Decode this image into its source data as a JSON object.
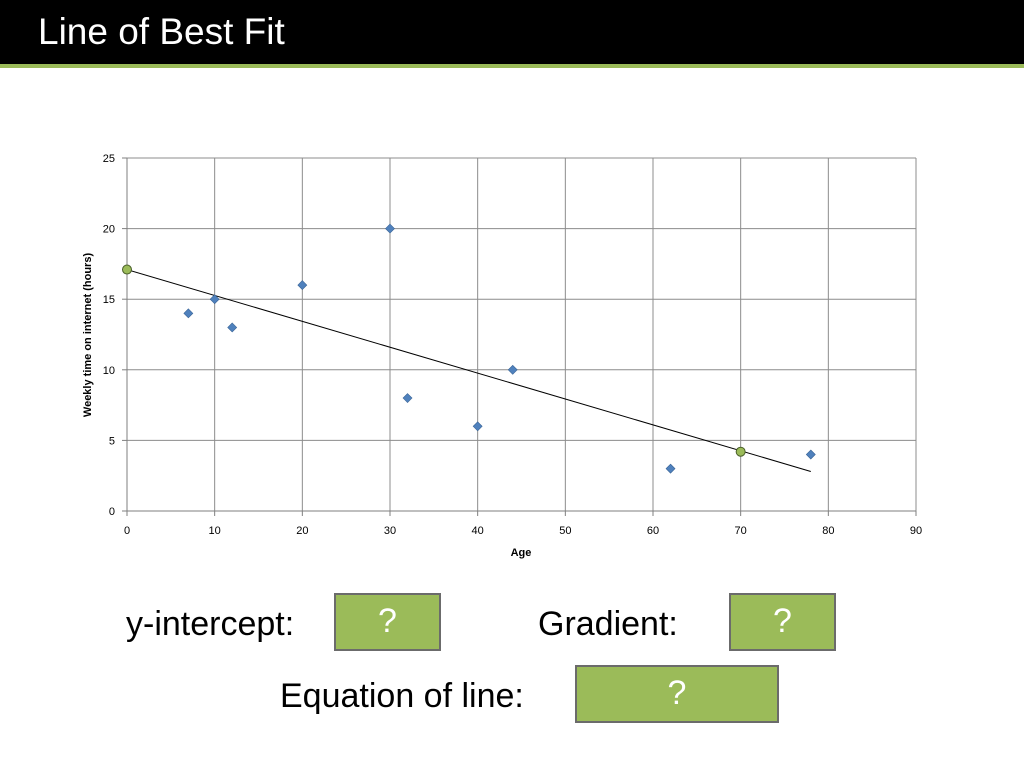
{
  "slide": {
    "title": "Line of Best Fit"
  },
  "colors": {
    "title_bar": "#000000",
    "title_underline": "#9bbb59",
    "point": "#4f81bd",
    "fit_point": "#9bbb59",
    "box": "#9bbb59"
  },
  "chart_data": {
    "type": "scatter",
    "xlabel": "Age",
    "ylabel": "Weekly time on internet (hours)",
    "xlim": [
      0,
      90
    ],
    "ylim": [
      0,
      25
    ],
    "xticks": [
      0,
      10,
      20,
      30,
      40,
      50,
      60,
      70,
      80,
      90
    ],
    "yticks": [
      0,
      5,
      10,
      15,
      20,
      25
    ],
    "grid": true,
    "points": [
      {
        "x": 7,
        "y": 14
      },
      {
        "x": 10,
        "y": 15
      },
      {
        "x": 12,
        "y": 13
      },
      {
        "x": 20,
        "y": 16
      },
      {
        "x": 30,
        "y": 20
      },
      {
        "x": 32,
        "y": 8
      },
      {
        "x": 40,
        "y": 6
      },
      {
        "x": 44,
        "y": 10
      },
      {
        "x": 62,
        "y": 3
      },
      {
        "x": 78,
        "y": 4
      }
    ],
    "fit_line": {
      "x0": 0,
      "y0": 17.1,
      "x1": 78,
      "y1": 2.8
    },
    "highlight_points": [
      {
        "x": 0,
        "y": 17.1
      },
      {
        "x": 70,
        "y": 4.2
      }
    ]
  },
  "questions": {
    "y_intercept_label": "y-intercept:",
    "y_intercept_answer": "?",
    "gradient_label": "Gradient:",
    "gradient_answer": "?",
    "equation_label": "Equation of line:",
    "equation_answer": "?"
  }
}
